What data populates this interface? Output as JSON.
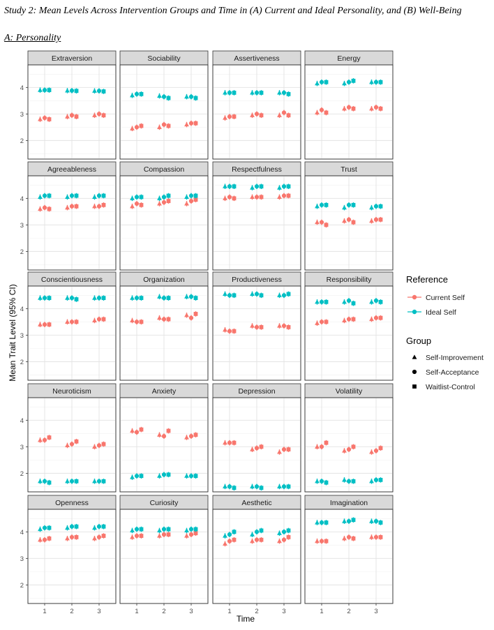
{
  "caption": "Study 2: Mean Levels Across Intervention Groups and Time in (A) Current and Ideal Personality, and (B) Well-Being",
  "subcaption": "A: Personality",
  "chart_data": {
    "type": "scatter",
    "subtype": "faceted point-range plot (means with 95% CI)",
    "xlabel": "Time",
    "ylabel": "Mean Trait Level (95% CI)",
    "x_ticks": [
      1,
      2,
      3
    ],
    "y_ticks": [
      2,
      3,
      4
    ],
    "ylim": [
      1.3,
      4.85
    ],
    "grid": true,
    "colors": {
      "Current Self": "#F8766D",
      "Ideal Self": "#00BFC4"
    },
    "legend": {
      "position": "right",
      "reference_title": "Reference",
      "reference": [
        "Current Self",
        "Ideal Self"
      ],
      "group_title": "Group",
      "groups": [
        "Self-Improvement",
        "Self-Acceptance",
        "Waitlist-Control"
      ],
      "shapes": [
        "triangle",
        "circle",
        "square"
      ]
    },
    "ci_half_width": 0.1,
    "panels": [
      {
        "name": "Extraversion",
        "current": [
          [
            2.8,
            2.85,
            2.8
          ],
          [
            2.9,
            2.95,
            2.9
          ],
          [
            2.95,
            3.0,
            2.95
          ]
        ],
        "ideal": [
          [
            3.9,
            3.9,
            3.9
          ],
          [
            3.88,
            3.88,
            3.87
          ],
          [
            3.87,
            3.87,
            3.85
          ]
        ]
      },
      {
        "name": "Sociability",
        "current": [
          [
            2.45,
            2.5,
            2.55
          ],
          [
            2.5,
            2.6,
            2.55
          ],
          [
            2.6,
            2.65,
            2.65
          ]
        ],
        "ideal": [
          [
            3.7,
            3.75,
            3.75
          ],
          [
            3.68,
            3.65,
            3.6
          ],
          [
            3.65,
            3.65,
            3.6
          ]
        ]
      },
      {
        "name": "Assertiveness",
        "current": [
          [
            2.85,
            2.9,
            2.9
          ],
          [
            2.95,
            3.0,
            2.95
          ],
          [
            2.95,
            3.05,
            2.95
          ]
        ],
        "ideal": [
          [
            3.8,
            3.8,
            3.8
          ],
          [
            3.8,
            3.8,
            3.8
          ],
          [
            3.8,
            3.8,
            3.75
          ]
        ]
      },
      {
        "name": "Energy",
        "current": [
          [
            3.05,
            3.15,
            3.05
          ],
          [
            3.2,
            3.25,
            3.2
          ],
          [
            3.2,
            3.25,
            3.2
          ]
        ],
        "ideal": [
          [
            4.15,
            4.2,
            4.2
          ],
          [
            4.15,
            4.2,
            4.25
          ],
          [
            4.2,
            4.2,
            4.2
          ]
        ]
      },
      {
        "name": "Agreeableness",
        "current": [
          [
            3.6,
            3.65,
            3.6
          ],
          [
            3.65,
            3.7,
            3.7
          ],
          [
            3.7,
            3.7,
            3.75
          ]
        ],
        "ideal": [
          [
            4.05,
            4.1,
            4.1
          ],
          [
            4.05,
            4.1,
            4.1
          ],
          [
            4.05,
            4.1,
            4.1
          ]
        ]
      },
      {
        "name": "Compassion",
        "current": [
          [
            3.7,
            3.8,
            3.75
          ],
          [
            3.8,
            3.85,
            3.9
          ],
          [
            3.8,
            3.9,
            3.95
          ]
        ],
        "ideal": [
          [
            4.0,
            4.05,
            4.05
          ],
          [
            4.0,
            4.05,
            4.1
          ],
          [
            4.05,
            4.1,
            4.1
          ]
        ]
      },
      {
        "name": "Respectfulness",
        "current": [
          [
            4.0,
            4.05,
            4.0
          ],
          [
            4.05,
            4.05,
            4.05
          ],
          [
            4.05,
            4.1,
            4.1
          ]
        ],
        "ideal": [
          [
            4.45,
            4.45,
            4.45
          ],
          [
            4.4,
            4.45,
            4.45
          ],
          [
            4.4,
            4.45,
            4.45
          ]
        ]
      },
      {
        "name": "Trust",
        "current": [
          [
            3.1,
            3.1,
            3.0
          ],
          [
            3.15,
            3.2,
            3.1
          ],
          [
            3.15,
            3.2,
            3.2
          ]
        ],
        "ideal": [
          [
            3.7,
            3.75,
            3.75
          ],
          [
            3.65,
            3.75,
            3.75
          ],
          [
            3.65,
            3.7,
            3.7
          ]
        ]
      },
      {
        "name": "Conscientiousness",
        "current": [
          [
            3.4,
            3.4,
            3.4
          ],
          [
            3.5,
            3.5,
            3.5
          ],
          [
            3.55,
            3.6,
            3.6
          ]
        ],
        "ideal": [
          [
            4.4,
            4.4,
            4.4
          ],
          [
            4.4,
            4.4,
            4.35
          ],
          [
            4.4,
            4.4,
            4.4
          ]
        ]
      },
      {
        "name": "Organization",
        "current": [
          [
            3.55,
            3.5,
            3.5
          ],
          [
            3.65,
            3.6,
            3.6
          ],
          [
            3.75,
            3.65,
            3.8
          ]
        ],
        "ideal": [
          [
            4.4,
            4.4,
            4.4
          ],
          [
            4.45,
            4.4,
            4.4
          ],
          [
            4.45,
            4.45,
            4.4
          ]
        ]
      },
      {
        "name": "Productiveness",
        "current": [
          [
            3.2,
            3.15,
            3.15
          ],
          [
            3.35,
            3.3,
            3.3
          ],
          [
            3.35,
            3.35,
            3.3
          ]
        ],
        "ideal": [
          [
            4.55,
            4.5,
            4.5
          ],
          [
            4.55,
            4.55,
            4.5
          ],
          [
            4.5,
            4.5,
            4.55
          ]
        ]
      },
      {
        "name": "Responsibility",
        "current": [
          [
            3.45,
            3.5,
            3.5
          ],
          [
            3.55,
            3.6,
            3.6
          ],
          [
            3.6,
            3.65,
            3.65
          ]
        ],
        "ideal": [
          [
            4.25,
            4.25,
            4.25
          ],
          [
            4.25,
            4.3,
            4.2
          ],
          [
            4.25,
            4.3,
            4.25
          ]
        ]
      },
      {
        "name": "Neuroticism",
        "current": [
          [
            3.25,
            3.25,
            3.35
          ],
          [
            3.05,
            3.1,
            3.2
          ],
          [
            3.0,
            3.05,
            3.1
          ]
        ],
        "ideal": [
          [
            1.7,
            1.7,
            1.65
          ],
          [
            1.7,
            1.7,
            1.7
          ],
          [
            1.7,
            1.7,
            1.7
          ]
        ]
      },
      {
        "name": "Anxiety",
        "current": [
          [
            3.6,
            3.55,
            3.65
          ],
          [
            3.45,
            3.4,
            3.6
          ],
          [
            3.35,
            3.4,
            3.45
          ]
        ],
        "ideal": [
          [
            1.85,
            1.9,
            1.9
          ],
          [
            1.9,
            1.95,
            1.95
          ],
          [
            1.9,
            1.9,
            1.9
          ]
        ]
      },
      {
        "name": "Depression",
        "current": [
          [
            3.15,
            3.15,
            3.15
          ],
          [
            2.9,
            2.95,
            3.0
          ],
          [
            2.8,
            2.9,
            2.9
          ]
        ],
        "ideal": [
          [
            1.5,
            1.5,
            1.45
          ],
          [
            1.5,
            1.5,
            1.45
          ],
          [
            1.5,
            1.5,
            1.5
          ]
        ]
      },
      {
        "name": "Volatility",
        "current": [
          [
            3.0,
            3.0,
            3.15
          ],
          [
            2.85,
            2.9,
            3.0
          ],
          [
            2.8,
            2.85,
            2.95
          ]
        ],
        "ideal": [
          [
            1.7,
            1.7,
            1.65
          ],
          [
            1.75,
            1.7,
            1.7
          ],
          [
            1.7,
            1.75,
            1.75
          ]
        ]
      },
      {
        "name": "Openness",
        "current": [
          [
            3.7,
            3.7,
            3.75
          ],
          [
            3.75,
            3.8,
            3.8
          ],
          [
            3.75,
            3.8,
            3.85
          ]
        ],
        "ideal": [
          [
            4.1,
            4.15,
            4.15
          ],
          [
            4.15,
            4.2,
            4.2
          ],
          [
            4.15,
            4.2,
            4.2
          ]
        ]
      },
      {
        "name": "Curiosity",
        "current": [
          [
            3.8,
            3.85,
            3.85
          ],
          [
            3.85,
            3.9,
            3.9
          ],
          [
            3.85,
            3.9,
            3.95
          ]
        ],
        "ideal": [
          [
            4.05,
            4.1,
            4.1
          ],
          [
            4.05,
            4.1,
            4.1
          ],
          [
            4.05,
            4.1,
            4.1
          ]
        ]
      },
      {
        "name": "Aesthetic",
        "current": [
          [
            3.55,
            3.65,
            3.7
          ],
          [
            3.65,
            3.7,
            3.7
          ],
          [
            3.65,
            3.7,
            3.8
          ]
        ],
        "ideal": [
          [
            3.85,
            3.9,
            4.0
          ],
          [
            3.9,
            4.0,
            4.05
          ],
          [
            3.95,
            4.0,
            4.05
          ]
        ]
      },
      {
        "name": "Imagination",
        "current": [
          [
            3.65,
            3.65,
            3.65
          ],
          [
            3.75,
            3.8,
            3.75
          ],
          [
            3.8,
            3.8,
            3.8
          ]
        ],
        "ideal": [
          [
            4.35,
            4.35,
            4.35
          ],
          [
            4.4,
            4.4,
            4.45
          ],
          [
            4.4,
            4.4,
            4.35
          ]
        ]
      }
    ]
  }
}
